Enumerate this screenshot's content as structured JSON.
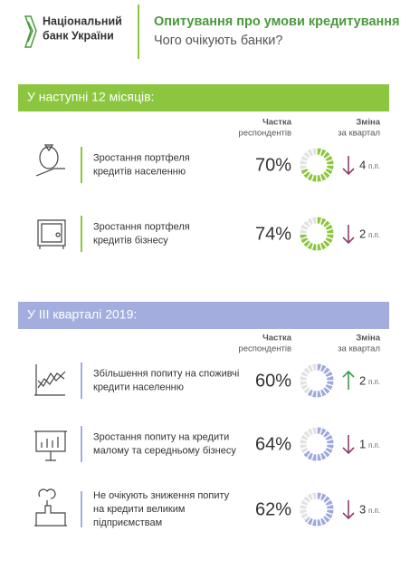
{
  "header": {
    "logo": [
      "Національний",
      "банк України"
    ],
    "title": "Опитування про умови кредитування",
    "subtitle": "Чого очікують банки?"
  },
  "sections": [
    {
      "heading": "У наступні 12 місяців:",
      "color": "#8cc63f",
      "arc_color": "#8cc63f",
      "share_header": [
        "Частка",
        "респондентів"
      ],
      "change_header": [
        "Зміна",
        "за квартал"
      ],
      "items": [
        {
          "text": [
            "Зростання портфеля",
            "кредитів населенню"
          ],
          "share": 70,
          "share_label": "70%",
          "change": 4,
          "direction": "down",
          "unit": "п.п."
        },
        {
          "text": [
            "Зростання портфеля",
            "кредитів бізнесу"
          ],
          "share": 74,
          "share_label": "74%",
          "change": 2,
          "direction": "down",
          "unit": "п.п."
        }
      ]
    },
    {
      "heading": "У III кварталі 2019:",
      "color": "#a4aede",
      "arc_color": "#9ea9dc",
      "share_header": [
        "Частка",
        "респондентів"
      ],
      "change_header": [
        "Зміна",
        "за квартал"
      ],
      "items": [
        {
          "text": [
            "Збільшення попиту на споживчі",
            "кредити населенню"
          ],
          "share": 60,
          "share_label": "60%",
          "change": 2,
          "direction": "up",
          "unit": "п.п."
        },
        {
          "text": [
            "Зростання попиту на кредити",
            "малому та середньому бізнесу"
          ],
          "share": 64,
          "share_label": "64%",
          "change": 1,
          "direction": "down",
          "unit": "п.п."
        },
        {
          "text": [
            "Не очікують зниження попиту",
            "на кредити великим",
            "підприємствам"
          ],
          "share": 62,
          "share_label": "62%",
          "change": 3,
          "direction": "down",
          "unit": "п.п."
        }
      ]
    }
  ]
}
